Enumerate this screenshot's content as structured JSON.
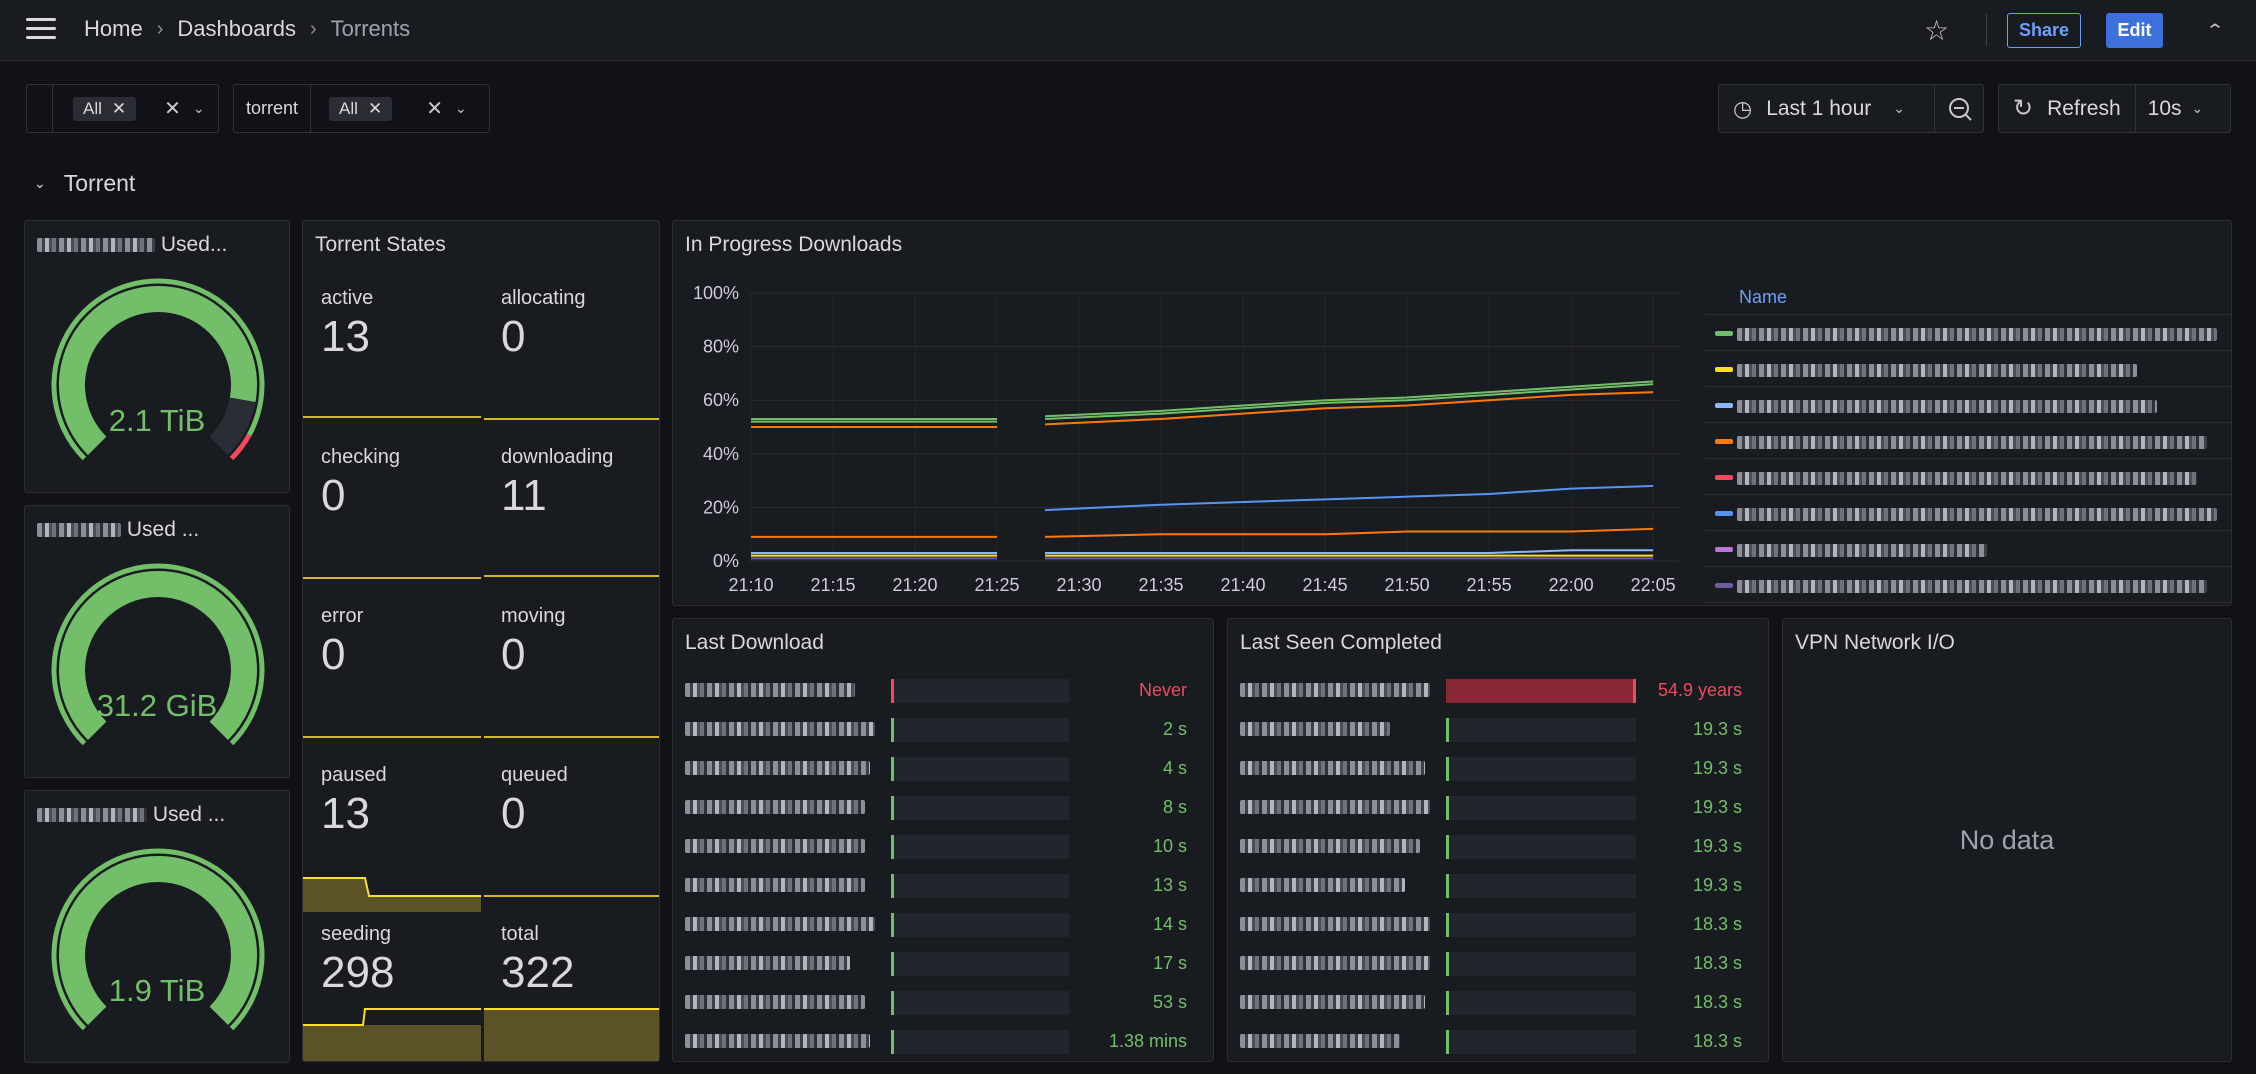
{
  "breadcrumb": {
    "home": "Home",
    "dashboards": "Dashboards",
    "current": "Torrents"
  },
  "actions": {
    "share": "Share",
    "edit": "Edit"
  },
  "variables": [
    {
      "label": "",
      "value": "All"
    },
    {
      "label": "torrent",
      "value": "All"
    }
  ],
  "time": {
    "range": "Last 1 hour",
    "refresh_label": "Refresh",
    "refresh_interval": "10s"
  },
  "row": {
    "title": "Torrent"
  },
  "gauges": [
    {
      "title_suffix": "Used...",
      "value": "2.1 TiB",
      "fraction": 0.87
    },
    {
      "title_suffix": "Used ...",
      "value": "31.2 GiB",
      "fraction": 1.0
    },
    {
      "title_suffix": "Used ...",
      "value": "1.9 TiB",
      "fraction": 1.0
    }
  ],
  "states": {
    "title": "Torrent States",
    "items": [
      {
        "label": "active",
        "value": "13"
      },
      {
        "label": "allocating",
        "value": "0"
      },
      {
        "label": "checking",
        "value": "0"
      },
      {
        "label": "downloading",
        "value": "11"
      },
      {
        "label": "error",
        "value": "0"
      },
      {
        "label": "moving",
        "value": "0"
      },
      {
        "label": "paused",
        "value": "13"
      },
      {
        "label": "queued",
        "value": "0"
      },
      {
        "label": "seeding",
        "value": "298"
      },
      {
        "label": "total",
        "value": "322"
      }
    ]
  },
  "progress": {
    "title": "In Progress Downloads",
    "legend_header": "Name",
    "colors": [
      "#73bf69",
      "#fade2a",
      "#8ab8ff",
      "#ff780a",
      "#f2495c",
      "#5794f2",
      "#b877d9",
      "#705da0"
    ]
  },
  "chart_data": {
    "type": "line",
    "x": [
      "21:10",
      "21:15",
      "21:20",
      "21:25",
      "21:30",
      "21:35",
      "21:40",
      "21:45",
      "21:50",
      "21:55",
      "22:00",
      "22:05"
    ],
    "ylim": [
      0,
      100
    ],
    "yticks": [
      "0%",
      "20%",
      "40%",
      "60%",
      "80%",
      "100%"
    ],
    "series": [
      {
        "values": [
          53,
          53,
          53,
          53,
          54,
          56,
          58,
          60,
          61,
          63,
          65,
          67
        ]
      },
      {
        "values": [
          52,
          52,
          52,
          52,
          53,
          55,
          57,
          59,
          60,
          62,
          64,
          66
        ]
      },
      {
        "values": [
          50,
          50,
          50,
          50,
          51,
          53,
          55,
          57,
          58,
          60,
          62,
          63
        ]
      },
      {
        "values": [
          null,
          null,
          null,
          17,
          19,
          21,
          22,
          23,
          24,
          25,
          27,
          28
        ]
      },
      {
        "values": [
          9,
          9,
          9,
          9,
          9,
          10,
          10,
          10,
          11,
          11,
          11,
          12
        ]
      },
      {
        "values": [
          3,
          3,
          3,
          3,
          3,
          3,
          3,
          3,
          3,
          3,
          4,
          4
        ]
      },
      {
        "values": [
          2,
          2,
          2,
          2,
          2,
          2,
          2,
          2,
          2,
          2,
          2,
          2
        ]
      },
      {
        "values": [
          1,
          1,
          1,
          1,
          1,
          1,
          1,
          1,
          1,
          1,
          1,
          1
        ]
      }
    ]
  },
  "last_download": {
    "title": "Last Download",
    "rows": [
      {
        "value": "Never",
        "color": "#f2495c",
        "fraction": 0.02
      },
      {
        "value": "2 s",
        "color": "#73bf69",
        "fraction": 0.02
      },
      {
        "value": "4 s",
        "color": "#73bf69",
        "fraction": 0.02
      },
      {
        "value": "8 s",
        "color": "#73bf69",
        "fraction": 0.02
      },
      {
        "value": "10 s",
        "color": "#73bf69",
        "fraction": 0.02
      },
      {
        "value": "13 s",
        "color": "#73bf69",
        "fraction": 0.02
      },
      {
        "value": "14 s",
        "color": "#73bf69",
        "fraction": 0.02
      },
      {
        "value": "17 s",
        "color": "#73bf69",
        "fraction": 0.02
      },
      {
        "value": "53 s",
        "color": "#73bf69",
        "fraction": 0.02
      },
      {
        "value": "1.38 mins",
        "color": "#73bf69",
        "fraction": 0.02
      }
    ]
  },
  "last_seen": {
    "title": "Last Seen Completed",
    "rows": [
      {
        "value": "54.9 years",
        "color": "#f2495c",
        "fraction": 1.0
      },
      {
        "value": "19.3 s",
        "color": "#73bf69",
        "fraction": 0.02
      },
      {
        "value": "19.3 s",
        "color": "#73bf69",
        "fraction": 0.02
      },
      {
        "value": "19.3 s",
        "color": "#73bf69",
        "fraction": 0.02
      },
      {
        "value": "19.3 s",
        "color": "#73bf69",
        "fraction": 0.02
      },
      {
        "value": "19.3 s",
        "color": "#73bf69",
        "fraction": 0.02
      },
      {
        "value": "18.3 s",
        "color": "#73bf69",
        "fraction": 0.02
      },
      {
        "value": "18.3 s",
        "color": "#73bf69",
        "fraction": 0.02
      },
      {
        "value": "18.3 s",
        "color": "#73bf69",
        "fraction": 0.02
      },
      {
        "value": "18.3 s",
        "color": "#73bf69",
        "fraction": 0.02
      }
    ]
  },
  "vpn": {
    "title": "VPN Network I/O",
    "empty": "No data"
  }
}
